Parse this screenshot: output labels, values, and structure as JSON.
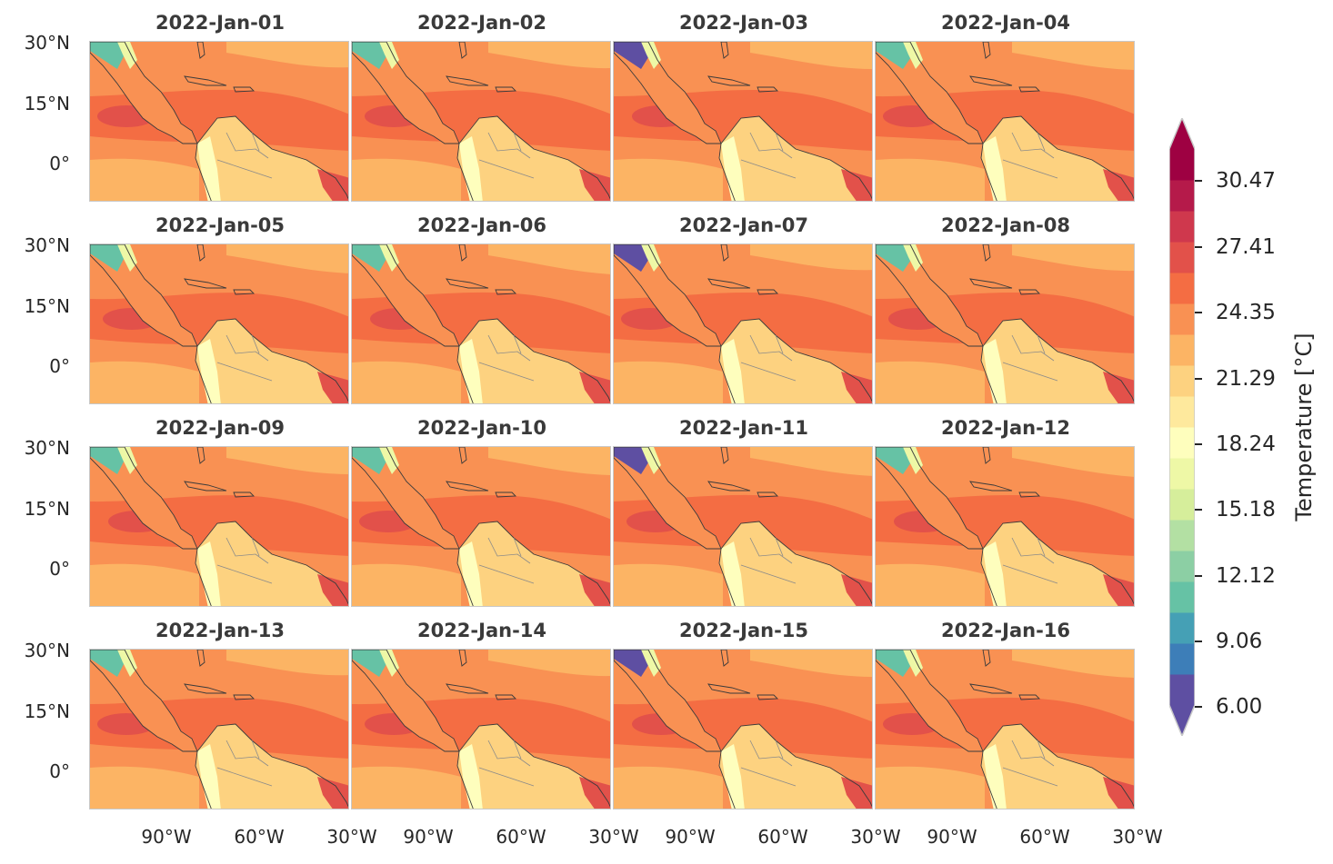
{
  "panels": [
    {
      "title": "2022-Jan-01"
    },
    {
      "title": "2022-Jan-02"
    },
    {
      "title": "2022-Jan-03"
    },
    {
      "title": "2022-Jan-04"
    },
    {
      "title": "2022-Jan-05"
    },
    {
      "title": "2022-Jan-06"
    },
    {
      "title": "2022-Jan-07"
    },
    {
      "title": "2022-Jan-08"
    },
    {
      "title": "2022-Jan-09"
    },
    {
      "title": "2022-Jan-10"
    },
    {
      "title": "2022-Jan-11"
    },
    {
      "title": "2022-Jan-12"
    },
    {
      "title": "2022-Jan-13"
    },
    {
      "title": "2022-Jan-14"
    },
    {
      "title": "2022-Jan-15"
    },
    {
      "title": "2022-Jan-16"
    }
  ],
  "lat_labels": [
    "30°N",
    "15°N",
    "0°"
  ],
  "lon_labels": [
    "90°W",
    "60°W",
    "30°W",
    "90°W",
    "60°W",
    "30°W",
    "90°W",
    "60°W",
    "30°W",
    "90°W",
    "60°W",
    "30°W"
  ],
  "colorbar": {
    "label": "Temperature [°C]",
    "tick_labels": [
      "30.47",
      "27.41",
      "24.35",
      "21.29",
      "18.24",
      "15.18",
      "12.12",
      "9.06",
      "6.00"
    ],
    "min": 6.0,
    "max": 31.99,
    "colors": [
      "#5e4fa2",
      "#3d7eb8",
      "#45a0b5",
      "#66c2a5",
      "#8ccfa4",
      "#b3e0a3",
      "#d6ee9b",
      "#eef8a6",
      "#fefebd",
      "#fee99d",
      "#fdd280",
      "#fcb464",
      "#f99153",
      "#f46d43",
      "#e2514a",
      "#cf384d",
      "#b51a4a",
      "#9e0142"
    ],
    "extend": "both"
  }
}
